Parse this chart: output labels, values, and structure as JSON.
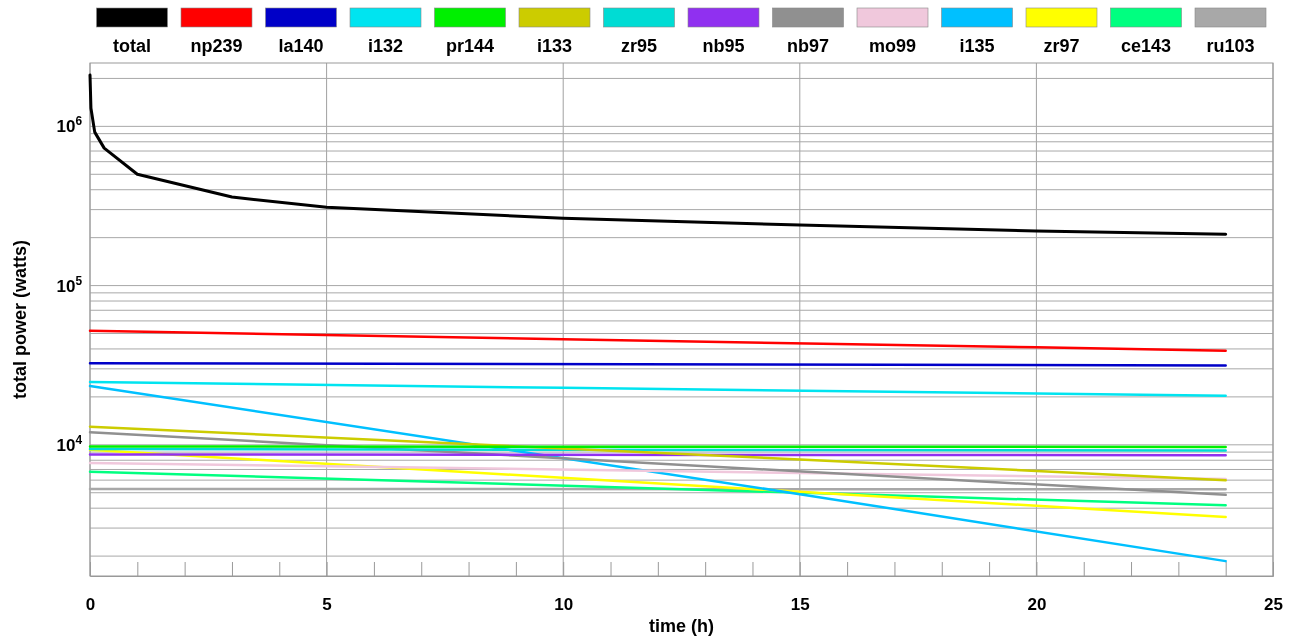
{
  "chart_data": {
    "type": "line",
    "xlabel": "time (h)",
    "ylabel": "total power (watts)",
    "log": "y",
    "grid": true,
    "legend": "top",
    "marker": "none",
    "line_style": "solid",
    "xlim": [
      0,
      25
    ],
    "ylim": [
      1500,
      2500000
    ],
    "xticks": [
      0,
      {
        "value": 1,
        "label": null
      },
      {
        "value": 2,
        "label": null
      },
      {
        "value": 3,
        "label": null
      },
      {
        "value": 4,
        "label": null
      },
      5,
      {
        "value": 6,
        "label": null
      },
      {
        "value": 7,
        "label": null
      },
      {
        "value": 8,
        "label": null
      },
      {
        "value": 9,
        "label": null
      },
      10,
      {
        "value": 11,
        "label": null
      },
      {
        "value": 12,
        "label": null
      },
      {
        "value": 13,
        "label": null
      },
      {
        "value": 14,
        "label": null
      },
      15,
      {
        "value": 16,
        "label": null
      },
      {
        "value": 17,
        "label": null
      },
      {
        "value": 18,
        "label": null
      },
      {
        "value": 19,
        "label": null
      },
      20,
      {
        "value": 21,
        "label": null
      },
      {
        "value": 22,
        "label": null
      },
      {
        "value": 23,
        "label": null
      },
      {
        "value": 24,
        "label": null
      },
      25
    ],
    "yticks": [
      {
        "value": 2000,
        "label": null
      },
      {
        "value": 3000,
        "label": null
      },
      {
        "value": 4000,
        "label": null
      },
      {
        "value": 5000,
        "label": null
      },
      {
        "value": 6000,
        "label": null
      },
      {
        "value": 7000,
        "label": null
      },
      {
        "value": 8000,
        "label": null
      },
      {
        "value": 9000,
        "label": null
      },
      {
        "value": 10000,
        "label": "10$^{4}$"
      },
      {
        "value": 20000,
        "label": null
      },
      {
        "value": 30000,
        "label": null
      },
      {
        "value": 40000,
        "label": null
      },
      {
        "value": 50000,
        "label": null
      },
      {
        "value": 60000,
        "label": null
      },
      {
        "value": 70000,
        "label": null
      },
      {
        "value": 80000,
        "label": null
      },
      {
        "value": 90000,
        "label": null
      },
      {
        "value": 100000,
        "label": "10$^{5}$"
      },
      {
        "value": 200000,
        "label": null
      },
      {
        "value": 300000,
        "label": null
      },
      {
        "value": 400000,
        "label": null
      },
      {
        "value": 500000,
        "label": null
      },
      {
        "value": 600000,
        "label": null
      },
      {
        "value": 700000,
        "label": null
      },
      {
        "value": 800000,
        "label": null
      },
      {
        "value": 900000,
        "label": null
      },
      {
        "value": 1000000,
        "label": "10$^{6}$"
      },
      {
        "value": 2000000,
        "label": null
      }
    ],
    "series": [
      {
        "name": "total",
        "color": "#000000",
        "x": [
          0,
          0.02,
          0.1,
          0.3,
          1,
          3,
          5,
          10,
          15,
          20,
          24
        ],
        "values": [
          2100000,
          1300000,
          920000,
          730000,
          500000,
          360000,
          310000,
          265000,
          240000,
          220000,
          210000
        ]
      },
      {
        "name": "np239",
        "color": "#ff0000",
        "x": [
          0,
          10,
          20,
          24
        ],
        "values": [
          52000,
          46000,
          41000,
          39000
        ]
      },
      {
        "name": "la140",
        "color": "#0000c8",
        "x": [
          0,
          24
        ],
        "values": [
          32500,
          31500
        ]
      },
      {
        "name": "i132",
        "color": "#00e4f0",
        "x": [
          0,
          10,
          24
        ],
        "values": [
          24800,
          22800,
          20300
        ]
      },
      {
        "name": "pr144",
        "color": "#00f000",
        "x": [
          0,
          24
        ],
        "values": [
          9750,
          9700
        ]
      },
      {
        "name": "i133",
        "color": "#cccc00",
        "x": [
          0,
          15,
          24
        ],
        "values": [
          13000,
          8100,
          6000
        ]
      },
      {
        "name": "zr95",
        "color": "#00dcd4",
        "x": [
          0,
          24
        ],
        "values": [
          9400,
          9200
        ]
      },
      {
        "name": "nb95",
        "color": "#9030f0",
        "x": [
          0,
          24
        ],
        "values": [
          8700,
          8600
        ]
      },
      {
        "name": "nb97",
        "color": "#909090",
        "x": [
          0,
          24
        ],
        "values": [
          12000,
          4850
        ]
      },
      {
        "name": "mo99",
        "color": "#f0c8dc",
        "x": [
          0,
          24
        ],
        "values": [
          7700,
          6100
        ]
      },
      {
        "name": "i135",
        "color": "#00c0ff",
        "x": [
          0,
          15,
          24
        ],
        "values": [
          23400,
          4900,
          1860
        ]
      },
      {
        "name": "zr97",
        "color": "#ffff00",
        "x": [
          0,
          24
        ],
        "values": [
          9300,
          3520
        ]
      },
      {
        "name": "ce143",
        "color": "#00ff80",
        "x": [
          0,
          24
        ],
        "values": [
          6780,
          4170
        ]
      },
      {
        "name": "ru103",
        "color": "#a8a8a8",
        "x": [
          0,
          24
        ],
        "values": [
          5280,
          5250
        ]
      }
    ]
  }
}
